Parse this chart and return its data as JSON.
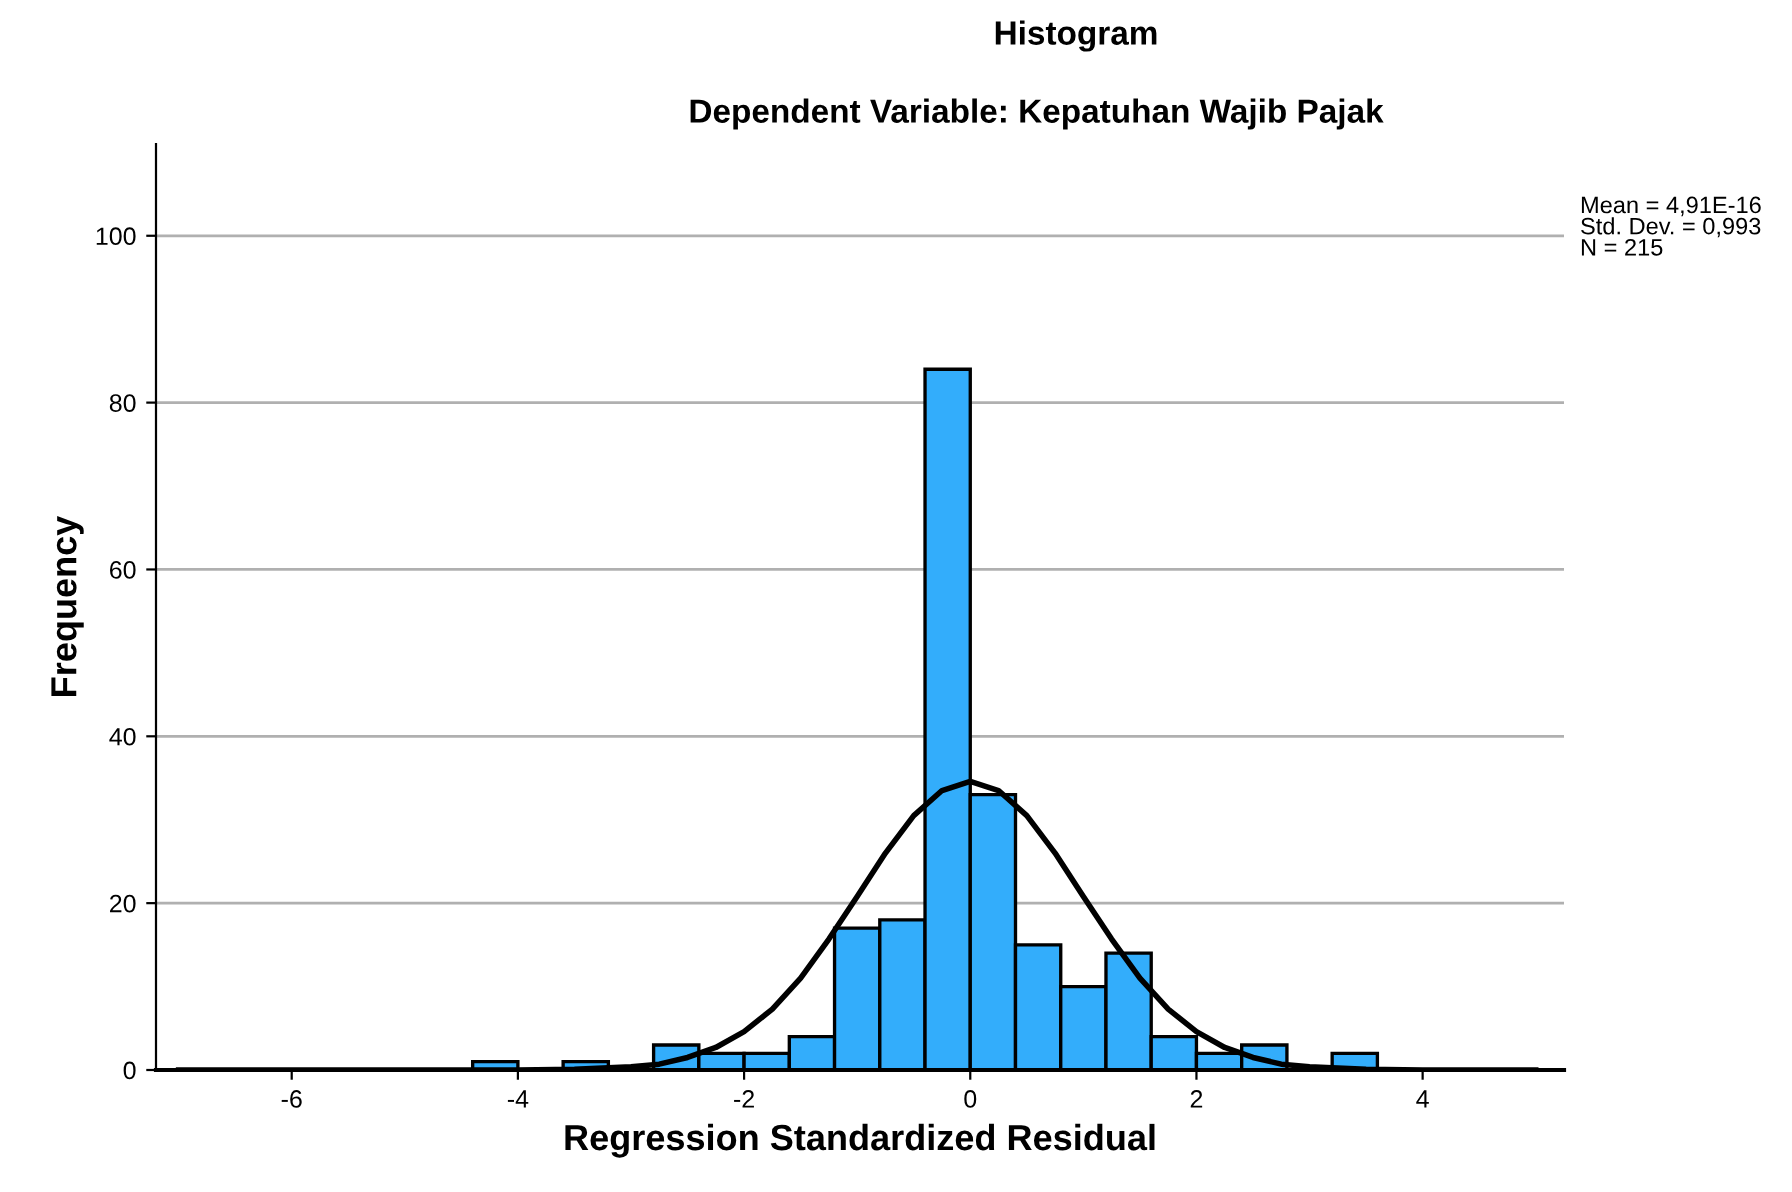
{
  "chart_data": {
    "type": "histogram",
    "title": "Histogram",
    "subtitle": "Dependent Variable: Kepatuhan Wajib Pajak",
    "xlabel": "Regression Standardized Residual",
    "ylabel": "Frequency",
    "bins": [
      -4.4,
      -4.0,
      -3.6,
      -3.2,
      -2.8,
      -2.4,
      -2.0,
      -1.6,
      -1.2,
      -0.8,
      -0.4,
      0.0,
      0.4,
      0.8,
      1.2,
      1.6,
      2.0,
      2.4,
      2.8,
      3.2,
      3.6
    ],
    "values": [
      1,
      0,
      1,
      0,
      3,
      2,
      2,
      4,
      17,
      18,
      84,
      33,
      15,
      10,
      14,
      4,
      2,
      3,
      0,
      2
    ],
    "color": "#33adfb",
    "series": [
      {
        "type": "line",
        "color": "#000000",
        "x": [
          -7,
          -4,
          -3.5,
          -3,
          -2.75,
          -2.5,
          -2.25,
          -2,
          -1.75,
          -1.5,
          -1.25,
          -1,
          -0.75,
          -0.5,
          -0.25,
          0,
          0.25,
          0.5,
          0.75,
          1,
          1.25,
          1.5,
          1.75,
          2,
          2.25,
          2.5,
          2.75,
          3,
          3.5,
          4,
          5
        ],
        "values": [
          0,
          0,
          0.1,
          0.4,
          0.7,
          1.5,
          2.7,
          4.6,
          7.3,
          11.0,
          15.7,
          20.8,
          26.0,
          30.5,
          33.5,
          34.6,
          33.5,
          30.5,
          26.0,
          20.8,
          15.7,
          11.0,
          7.3,
          4.6,
          2.7,
          1.5,
          0.7,
          0.4,
          0.1,
          0,
          0
        ]
      }
    ],
    "xlim": [
      -7.2,
      5.25
    ],
    "ylim": [
      0,
      111
    ],
    "xticks": [
      -6,
      -4,
      -2,
      0,
      2,
      4
    ],
    "yticks": [
      0,
      20,
      40,
      60,
      80,
      100
    ],
    "grid": "y",
    "annotations": [
      "Mean = 4,91E-16\nStd. Dev. = 0,993\nN = 215"
    ]
  }
}
